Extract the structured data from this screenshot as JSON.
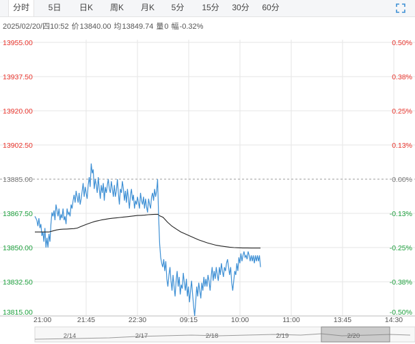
{
  "tabs": [
    {
      "label": "分时",
      "active": true
    },
    {
      "label": "5日"
    },
    {
      "label": "日K"
    },
    {
      "label": "周K"
    },
    {
      "label": "月K"
    },
    {
      "label": "5分"
    },
    {
      "label": "15分"
    },
    {
      "label": "30分"
    },
    {
      "label": "60分"
    }
  ],
  "fullscreen_icon": "expand-icon",
  "info": {
    "datetime": "2025/02/20/四10:52",
    "price_label": "价",
    "price": "13840.00",
    "avg_label": "均",
    "avg": "13849.74",
    "volume_label": "量",
    "volume": "0",
    "change_label": "幅",
    "change": "-0.32%"
  },
  "colors": {
    "price_line": "#3d8fd4",
    "avg_line": "#222222",
    "up": "#e8322a",
    "down": "#1a9e3a",
    "neutral": "#777777",
    "grid": "#e6e6e6"
  },
  "chart_data": {
    "type": "line",
    "title": "",
    "xlabel": "",
    "ylabel": "",
    "ylim": [
      13815.0,
      13955.0
    ],
    "prev_close": 13885.0,
    "y_ticks": [
      "13955.00",
      "13937.50",
      "13920.00",
      "13902.50",
      "13885.00",
      "13867.50",
      "13850.00",
      "13832.50",
      "13815.00"
    ],
    "pct_ticks": [
      "0.50%",
      "0.38%",
      "0.25%",
      "0.13%",
      "0.00%",
      "-0.13%",
      "-0.25%",
      "-0.38%",
      "-0.50%"
    ],
    "x_ticks": [
      "21:00",
      "21:45",
      "22:30",
      "09:15",
      "10:00",
      "11:00",
      "13:45",
      "14:30"
    ],
    "nav_labels": [
      "2/14",
      "2/17",
      "2/18",
      "2/19",
      "2/20"
    ],
    "series": [
      {
        "key": "price",
        "values": [
          13866,
          13865,
          13864,
          13861,
          13865,
          13860,
          13862,
          13856,
          13858,
          13853,
          13860,
          13850,
          13855,
          13850,
          13857,
          13853,
          13862,
          13868,
          13866,
          13869,
          13864,
          13872,
          13869,
          13866,
          13870,
          13864,
          13867,
          13865,
          13870,
          13864,
          13866,
          13862,
          13870,
          13867,
          13868,
          13866,
          13872,
          13870,
          13874,
          13877,
          13873,
          13879,
          13876,
          13873,
          13878,
          13872,
          13875,
          13879,
          13883,
          13876,
          13881,
          13878,
          13875,
          13882,
          13886,
          13881,
          13893,
          13888,
          13890,
          13880,
          13885,
          13882,
          13878,
          13886,
          13880,
          13875,
          13882,
          13878,
          13883,
          13874,
          13881,
          13878,
          13882,
          13885,
          13880,
          13878,
          13884,
          13880,
          13876,
          13882,
          13876,
          13879,
          13885,
          13878,
          13872,
          13880,
          13878,
          13884,
          13880,
          13874,
          13879,
          13873,
          13880,
          13875,
          13870,
          13877,
          13880,
          13874,
          13877,
          13870,
          13874,
          13872,
          13876,
          13873,
          13870,
          13878,
          13874,
          13872,
          13876,
          13870,
          13875,
          13871,
          13868,
          13875,
          13872,
          13870,
          13876,
          13878,
          13874,
          13880,
          13876,
          13879,
          13885,
          13866
        ],
        "values2": [
          13866,
          13852,
          13845,
          13842,
          13840,
          13844,
          13838,
          13843,
          13834,
          13830,
          13836,
          13840,
          13833,
          13828,
          13836,
          13830,
          13825,
          13833,
          13838,
          13830,
          13835,
          13826,
          13831,
          13829,
          13837,
          13832,
          13828,
          13834,
          13825,
          13830,
          13822,
          13828,
          13833,
          13826,
          13820,
          13815,
          13822,
          13830,
          13825,
          13832,
          13828,
          13824,
          13832,
          13828,
          13835,
          13830,
          13834,
          13830,
          13836,
          13833,
          13828,
          13835,
          13840,
          13833,
          13838,
          13834,
          13840,
          13836,
          13833,
          13840,
          13836,
          13842,
          13838,
          13835,
          13840,
          13838,
          13842,
          13844,
          13840,
          13836,
          13840,
          13832,
          13828,
          13833,
          13838,
          13836,
          13842,
          13838,
          13845,
          13842,
          13847,
          13843,
          13846,
          13848,
          13845,
          13846,
          13844,
          13848,
          13846,
          13843,
          13846,
          13843,
          13846,
          13842,
          13846,
          13843,
          13846,
          13843,
          13846,
          13840
        ]
      },
      {
        "key": "avg",
        "values": [
          13858.0,
          13858.5,
          13859.0,
          13859.3,
          13859.4,
          13859.5,
          13859.6,
          13859.7,
          13860.0,
          13860.8,
          13861.5,
          13862.2,
          13862.8,
          13863.4,
          13863.8,
          13864.2,
          13864.5,
          13864.8,
          13865.0,
          13865.2,
          13865.4,
          13865.6,
          13865.8,
          13866.0,
          13866.2,
          13866.4,
          13866.5,
          13866.6,
          13866.8,
          13866.9,
          13867.0,
          13867.0
        ],
        "values2": [
          13866.5,
          13865.5,
          13863.0,
          13861.0,
          13859.5,
          13858.0,
          13857.0,
          13856.0,
          13855.0,
          13854.0,
          13853.2,
          13852.4,
          13851.8,
          13851.2,
          13850.8,
          13850.5,
          13850.2,
          13850.0,
          13849.9,
          13849.8,
          13849.8,
          13849.75,
          13849.74,
          13849.74
        ]
      }
    ]
  }
}
